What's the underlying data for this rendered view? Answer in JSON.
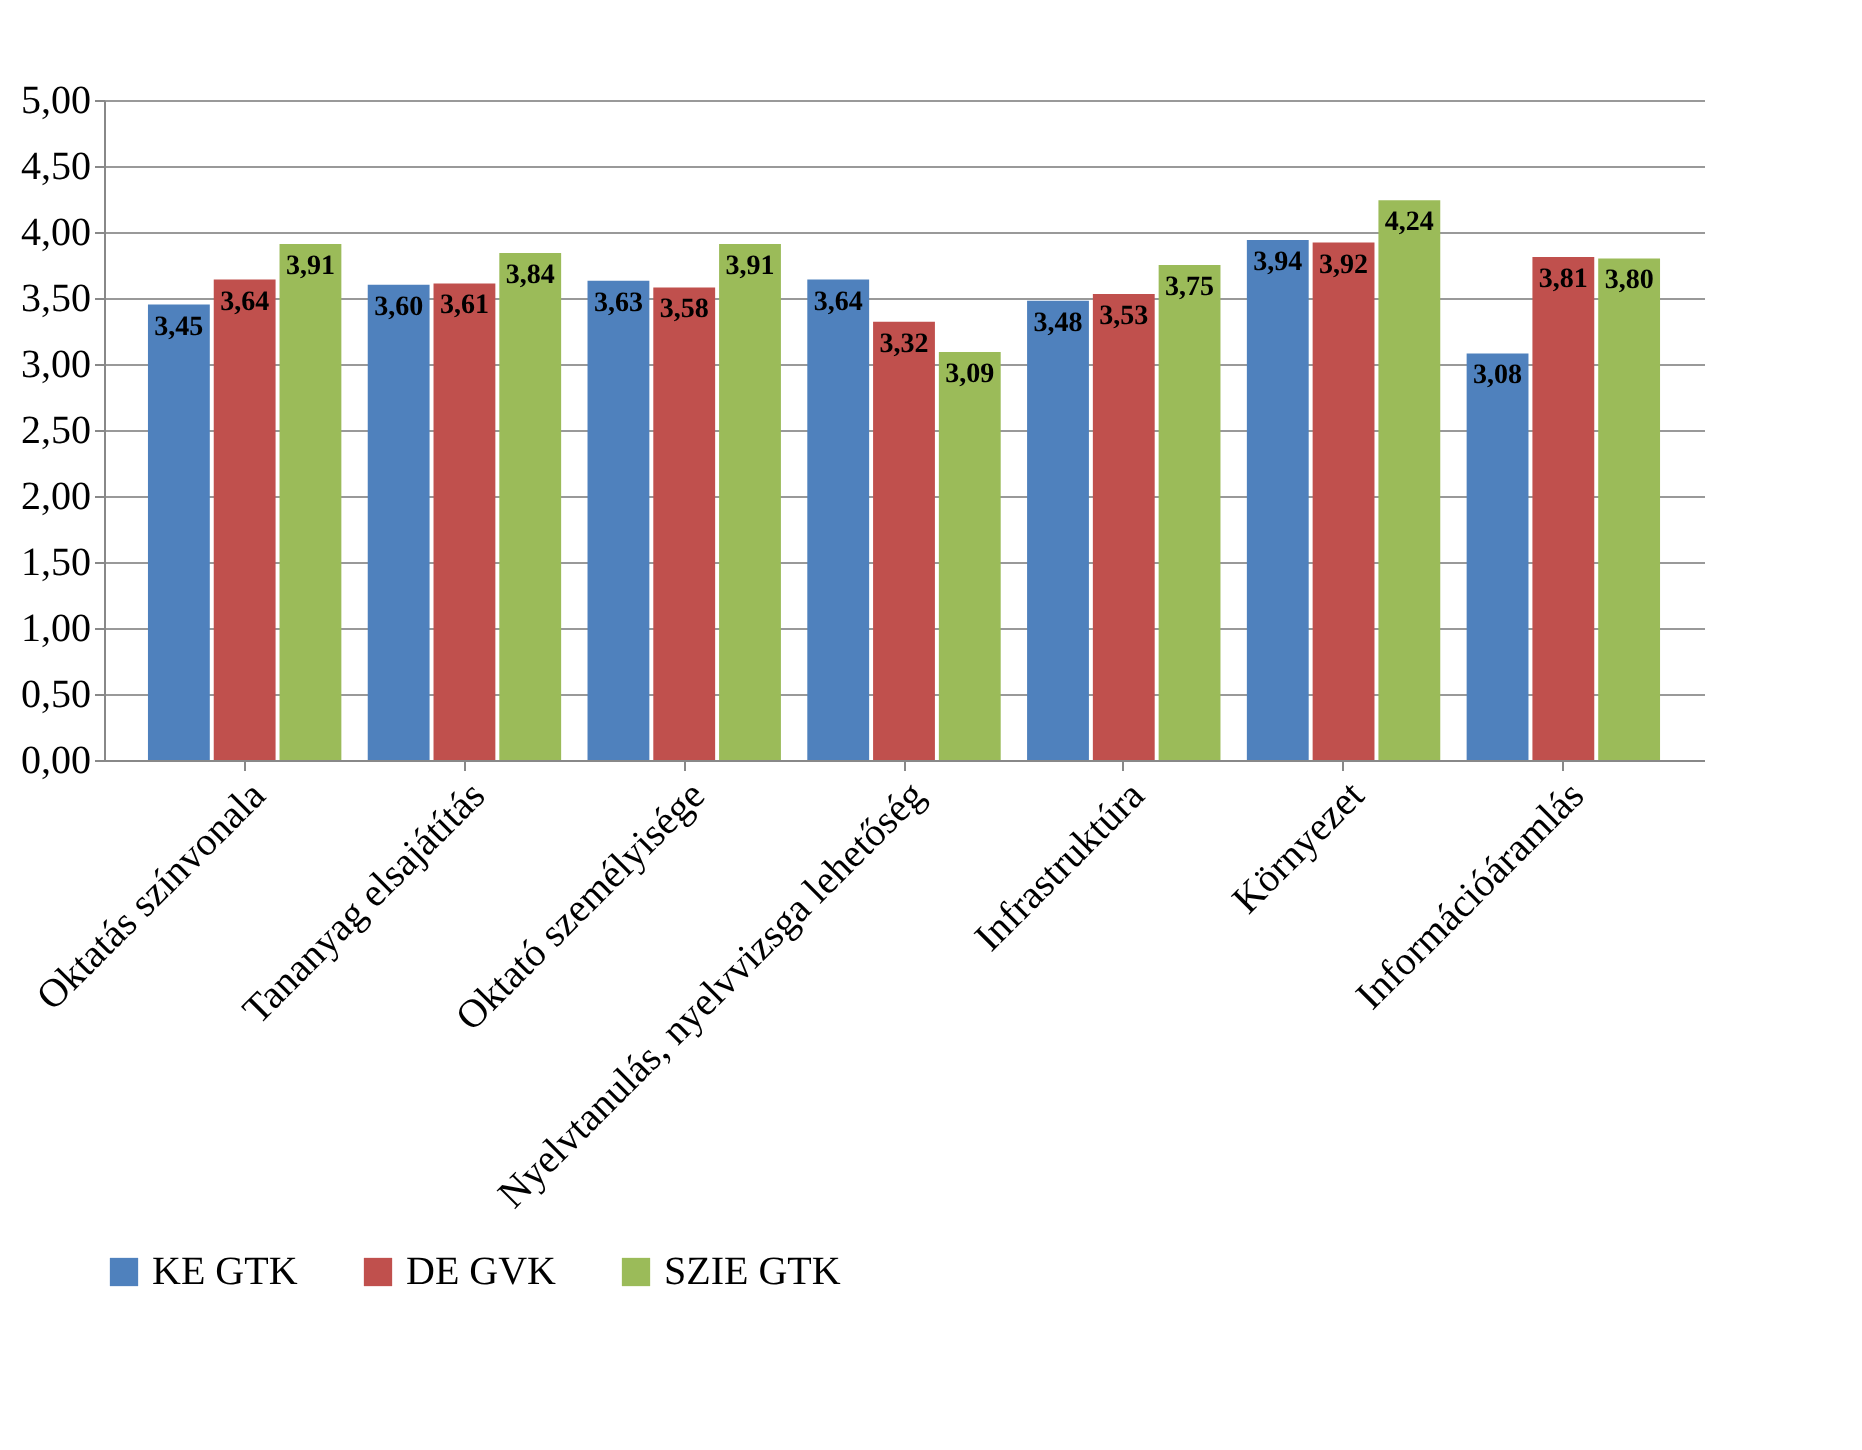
{
  "chart_data": {
    "type": "bar",
    "categories": [
      "Oktatás színvonala",
      "Tananyag elsajátítás",
      "Oktató személyisége",
      "Nyelvtanulás, nyelvvizsga lehetőség",
      "Infrastruktúra",
      "Környezet",
      "Információáramlás"
    ],
    "series": [
      {
        "name": "KE GTK",
        "color": "#4f81bd",
        "values": [
          3.45,
          3.6,
          3.63,
          3.64,
          3.48,
          3.94,
          3.08
        ],
        "value_labels": [
          "3,45",
          "3,60",
          "3,63",
          "3,64",
          "3,48",
          "3,94",
          "3,08"
        ]
      },
      {
        "name": "DE GVK",
        "color": "#c0504d",
        "values": [
          3.64,
          3.61,
          3.58,
          3.32,
          3.53,
          3.92,
          3.81
        ],
        "value_labels": [
          "3,64",
          "3,61",
          "3,58",
          "3,32",
          "3,53",
          "3,92",
          "3,81"
        ]
      },
      {
        "name": "SZIE GTK",
        "color": "#9bbb59",
        "values": [
          3.91,
          3.84,
          3.91,
          3.09,
          3.75,
          4.24,
          3.8
        ],
        "value_labels": [
          "3,91",
          "3,84",
          "3,91",
          "3,09",
          "3,75",
          "4,24",
          "3,80"
        ]
      }
    ],
    "ylim": [
      0,
      5
    ],
    "yticks": [
      {
        "value": 0,
        "label": "0,00"
      },
      {
        "value": 0.5,
        "label": "0,50"
      },
      {
        "value": 1,
        "label": "1,00"
      },
      {
        "value": 1.5,
        "label": "1,50"
      },
      {
        "value": 2,
        "label": "2,00"
      },
      {
        "value": 2.5,
        "label": "2,50"
      },
      {
        "value": 3,
        "label": "3,00"
      },
      {
        "value": 3.5,
        "label": "3,50"
      },
      {
        "value": 4,
        "label": "4,00"
      },
      {
        "value": 4.5,
        "label": "4,50"
      },
      {
        "value": 5,
        "label": "5,00"
      }
    ],
    "grid": "y",
    "legend": "bottom"
  }
}
